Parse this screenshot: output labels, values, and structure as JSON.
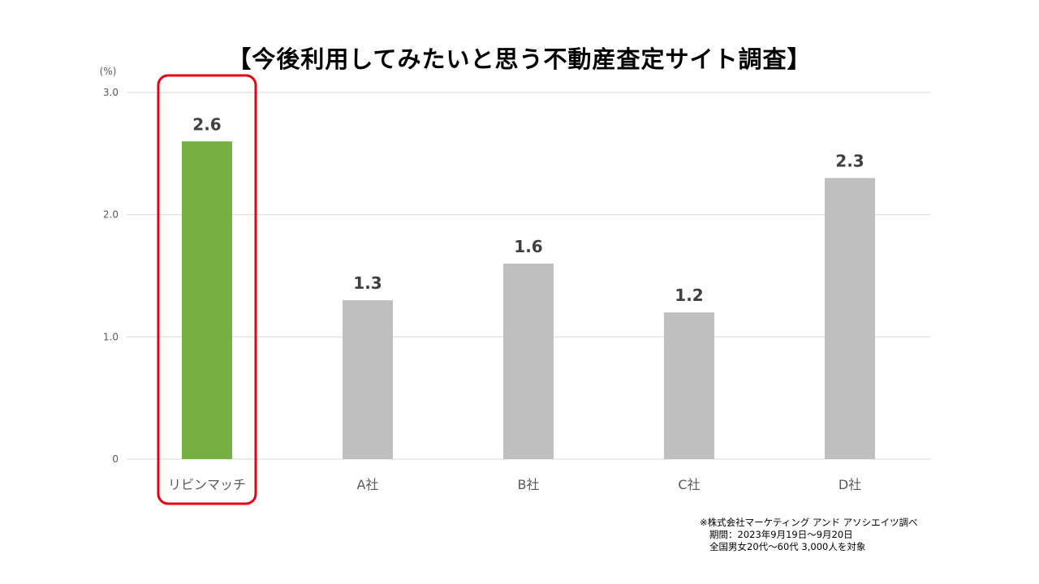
{
  "chart_data": {
    "type": "bar",
    "title": "【今後利用してみたいと思う不動産査定サイト調査】",
    "unit_label": "(%)",
    "categories": [
      "リビンマッチ",
      "A社",
      "B社",
      "C社",
      "D社"
    ],
    "values": [
      2.6,
      1.3,
      1.6,
      1.2,
      2.3
    ],
    "value_labels": [
      "2.6",
      "1.3",
      "1.6",
      "1.2",
      "2.3"
    ],
    "ylim": [
      0,
      3.0
    ],
    "y_ticks": [
      {
        "value": 0,
        "label": "0"
      },
      {
        "value": 1.0,
        "label": "1.0"
      },
      {
        "value": 2.0,
        "label": "2.0"
      },
      {
        "value": 3.0,
        "label": "3.0"
      }
    ],
    "grid": true,
    "legend": "none",
    "highlight_index": 0,
    "colors": {
      "highlight_bar": "#76b041",
      "bar": "#bfbfbf",
      "highlight_frame": "#e60012",
      "grid": "#d9d9d9",
      "text": "#404040",
      "tick_text": "#595959"
    }
  },
  "source_note": {
    "line1": "※株式会社マーケティング アンド アソシエイツ調べ",
    "line2": "期間：2023年9月19日～9月20日",
    "line3": "全国男女20代～60代 3,000人を対象"
  }
}
